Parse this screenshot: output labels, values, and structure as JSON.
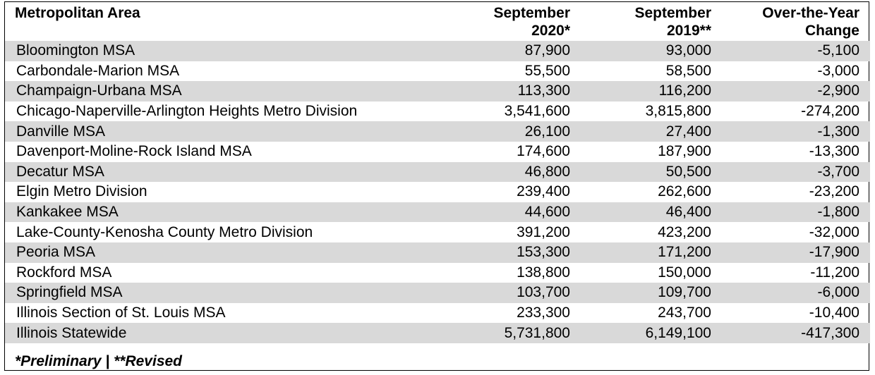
{
  "headers": {
    "area": "Metropolitan Area",
    "sep2020_line1": "September",
    "sep2020_line2": "2020*",
    "sep2019_line1": "September",
    "sep2019_line2": "2019**",
    "change_line1": "Over-the-Year",
    "change_line2": "Change"
  },
  "rows": [
    {
      "area": "Bloomington MSA",
      "sep2020": "87,900",
      "sep2019": "93,000",
      "change": "-5,100"
    },
    {
      "area": "Carbondale-Marion MSA",
      "sep2020": "55,500",
      "sep2019": "58,500",
      "change": "-3,000"
    },
    {
      "area": "Champaign-Urbana MSA",
      "sep2020": "113,300",
      "sep2019": "116,200",
      "change": "-2,900"
    },
    {
      "area": "Chicago-Naperville-Arlington Heights Metro Division",
      "sep2020": "3,541,600",
      "sep2019": "3,815,800",
      "change": "-274,200"
    },
    {
      "area": "Danville MSA",
      "sep2020": "26,100",
      "sep2019": "27,400",
      "change": "-1,300"
    },
    {
      "area": "Davenport-Moline-Rock Island MSA",
      "sep2020": "174,600",
      "sep2019": "187,900",
      "change": "-13,300"
    },
    {
      "area": "Decatur MSA",
      "sep2020": "46,800",
      "sep2019": "50,500",
      "change": "-3,700"
    },
    {
      "area": "Elgin Metro Division",
      "sep2020": "239,400",
      "sep2019": "262,600",
      "change": "-23,200"
    },
    {
      "area": "Kankakee MSA",
      "sep2020": "44,600",
      "sep2019": "46,400",
      "change": "-1,800"
    },
    {
      "area": "Lake-County-Kenosha County Metro Division",
      "sep2020": "391,200",
      "sep2019": "423,200",
      "change": "-32,000"
    },
    {
      "area": "Peoria MSA",
      "sep2020": "153,300",
      "sep2019": "171,200",
      "change": "-17,900"
    },
    {
      "area": "Rockford MSA",
      "sep2020": "138,800",
      "sep2019": "150,000",
      "change": "-11,200"
    },
    {
      "area": "Springfield MSA",
      "sep2020": "103,700",
      "sep2019": "109,700",
      "change": "-6,000"
    },
    {
      "area": "Illinois Section of St. Louis MSA",
      "sep2020": "233,300",
      "sep2019": "243,700",
      "change": "-10,400"
    },
    {
      "area": "Illinois Statewide",
      "sep2020": "5,731,800",
      "sep2019": "6,149,100",
      "change": "-417,300"
    }
  ],
  "footnote": "*Preliminary | **Revised",
  "colors": {
    "shade": "#d9d9d9",
    "border": "#000000"
  }
}
